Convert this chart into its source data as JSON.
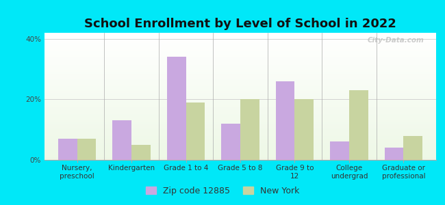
{
  "title": "School Enrollment by Level of School in 2022",
  "categories": [
    "Nursery,\npreschool",
    "Kindergarten",
    "Grade 1 to 4",
    "Grade 5 to 8",
    "Grade 9 to\n12",
    "College\nundergrad",
    "Graduate or\nprofessional"
  ],
  "zip_values": [
    7,
    13,
    34,
    12,
    26,
    6,
    4
  ],
  "ny_values": [
    7,
    5,
    19,
    20,
    20,
    23,
    8
  ],
  "zip_color": "#c9a8e0",
  "ny_color": "#c8d4a0",
  "background_outer": "#00e8f8",
  "ylim": [
    0,
    42
  ],
  "yticks": [
    0,
    20,
    40
  ],
  "ytick_labels": [
    "0%",
    "20%",
    "40%"
  ],
  "watermark": "City-Data.com",
  "legend_zip_label": "Zip code 12885",
  "legend_ny_label": "New York",
  "bar_width": 0.35,
  "title_fontsize": 13,
  "tick_fontsize": 7.5
}
